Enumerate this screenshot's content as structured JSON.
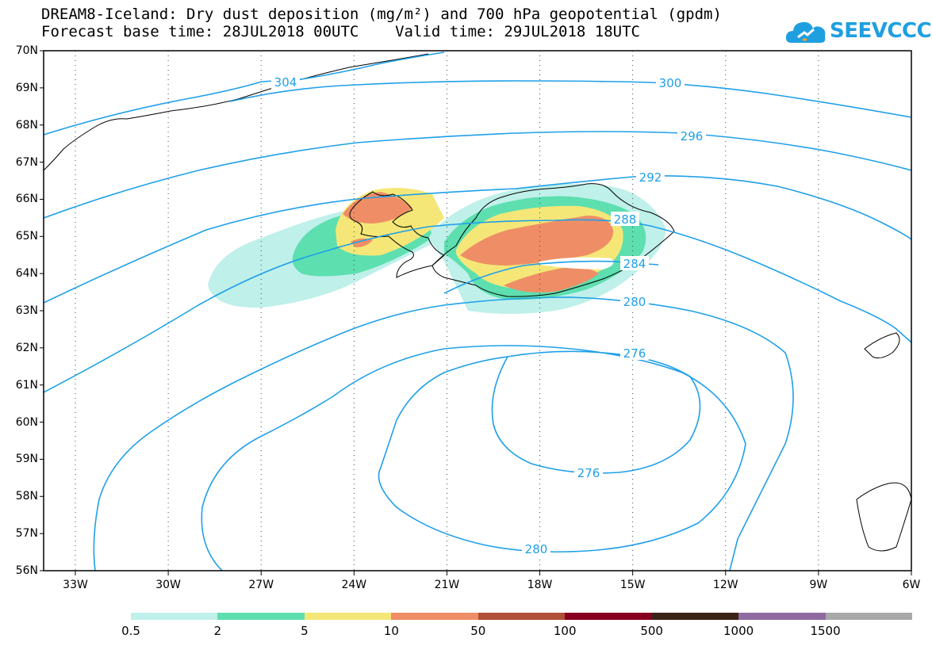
{
  "header": {
    "title_line1": "DREAM8-Iceland: Dry dust deposition (mg/m²) and 700 hPa geopotential (gpdm)",
    "title_line2": "Forecast base time: 28JUL2018 00UTC    Valid time: 29JUL2018 18UTC"
  },
  "logo": {
    "text": "SEEVCCC",
    "color": "#1f9fe0"
  },
  "map": {
    "lat_labels": [
      "70N",
      "69N",
      "68N",
      "67N",
      "66N",
      "65N",
      "64N",
      "63N",
      "62N",
      "61N",
      "60N",
      "59N",
      "58N",
      "57N",
      "56N"
    ],
    "lon_labels": [
      "33W",
      "30W",
      "27W",
      "24W",
      "21W",
      "18W",
      "15W",
      "12W",
      "9W",
      "6W"
    ],
    "contour_labels": [
      "304",
      "300",
      "296",
      "292",
      "288",
      "284",
      "280",
      "276",
      "276",
      "280"
    ],
    "contour_color": "#1fa0e8"
  },
  "legend": {
    "colors": [
      "#bff0ea",
      "#5ddfb0",
      "#f5e777",
      "#ef8e66",
      "#b05038",
      "#880020",
      "#3a2417",
      "#8f6aa0",
      "#a9a9a9"
    ],
    "labels": [
      "0.5",
      "2",
      "5",
      "10",
      "50",
      "100",
      "500",
      "1000",
      "1500"
    ]
  }
}
